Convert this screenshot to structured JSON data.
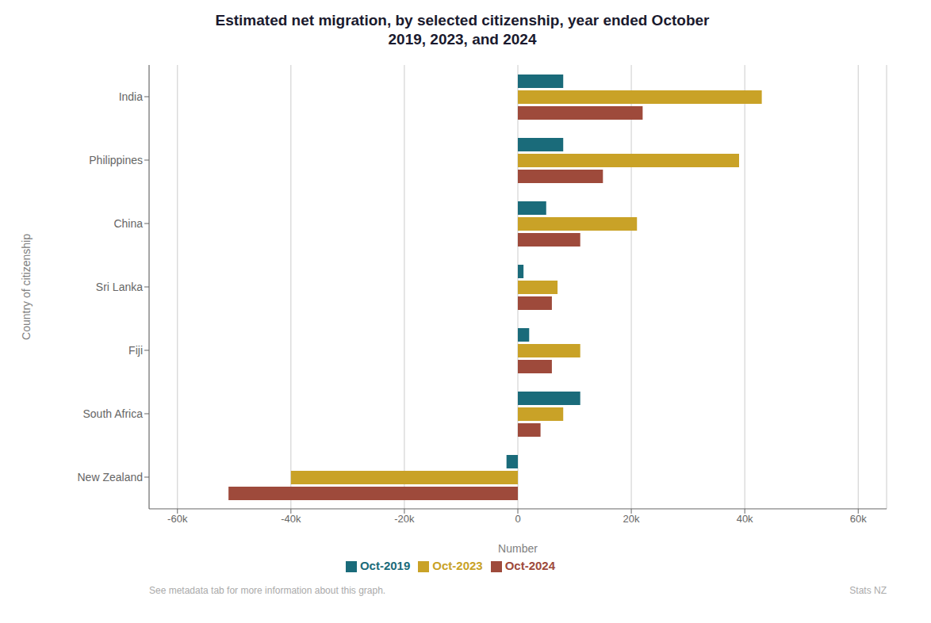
{
  "chart_data": {
    "type": "bar",
    "orientation": "horizontal",
    "title": "Estimated net migration, by selected citizenship, year ended October\n2019, 2023, and 2024",
    "xlabel": "Number",
    "ylabel": "Country of citizenship",
    "categories": [
      "New Zealand",
      "South Africa",
      "Fiji",
      "Sri Lanka",
      "China",
      "Philippines",
      "India"
    ],
    "series": [
      {
        "name": "Oct-2019",
        "color": "#1a6b7a",
        "values": [
          -2000,
          11000,
          2000,
          1000,
          5000,
          8000,
          8000
        ]
      },
      {
        "name": "Oct-2023",
        "color": "#c9a227",
        "values": [
          -40000,
          8000,
          11000,
          7000,
          21000,
          39000,
          43000
        ]
      },
      {
        "name": "Oct-2024",
        "color": "#9e4a3b",
        "values": [
          -51000,
          4000,
          6000,
          6000,
          11000,
          15000,
          22000
        ]
      }
    ],
    "xlim": [
      -65000,
      65000
    ],
    "xticks": [
      {
        "value": -60000,
        "label": "-60k"
      },
      {
        "value": -40000,
        "label": "-40k"
      },
      {
        "value": -20000,
        "label": "-20k"
      },
      0,
      {
        "value": 20000,
        "label": "20k"
      },
      {
        "value": 40000,
        "label": "40k"
      },
      {
        "value": 60000,
        "label": "60k"
      }
    ],
    "grid": true,
    "legend": "bottom",
    "annotations": [
      "See metadata tab for more information about this graph.",
      "Stats NZ"
    ]
  }
}
